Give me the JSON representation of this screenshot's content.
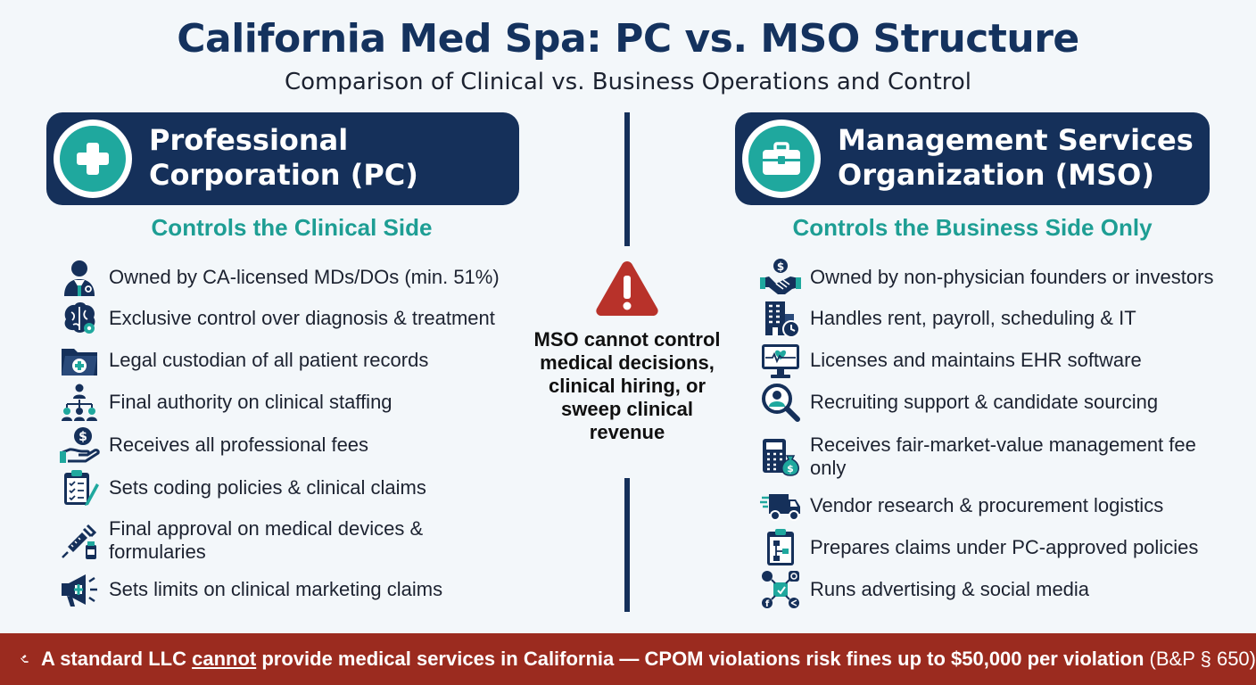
{
  "title": "California Med Spa: PC vs. MSO Structure",
  "subtitle": "Comparison of Clinical vs. Business Operations and Control",
  "pc": {
    "icon": "medical-cross-icon",
    "title_line1": "Professional",
    "title_line2": "Corporation (PC)",
    "side_label": "Controls the Clinical Side",
    "items": [
      {
        "icon": "doctor-icon",
        "label": "Owned by CA-licensed MDs/DOs (min. 51%)"
      },
      {
        "icon": "brain-gear-icon",
        "label": "Exclusive control over diagnosis & treatment"
      },
      {
        "icon": "medical-folder-icon",
        "label": "Legal custodian of all patient records"
      },
      {
        "icon": "org-chart-icon",
        "label": "Final authority on clinical staffing"
      },
      {
        "icon": "hand-coin-icon",
        "label": "Receives all professional fees"
      },
      {
        "icon": "clipboard-check-icon",
        "label": "Sets coding policies & clinical claims"
      },
      {
        "icon": "syringe-vial-icon",
        "label": "Final approval on medical devices & formularies"
      },
      {
        "icon": "megaphone-cross-icon",
        "label": "Sets limits on clinical marketing claims"
      }
    ]
  },
  "mso": {
    "icon": "briefcase-icon",
    "title_line1": "Management Services",
    "title_line2": "Organization (MSO)",
    "side_label": "Controls the Business Side Only",
    "items": [
      {
        "icon": "handshake-coin-icon",
        "label": "Owned by non-physician founders or investors"
      },
      {
        "icon": "building-clock-icon",
        "label": "Handles rent, payroll, scheduling & IT"
      },
      {
        "icon": "monitor-heartbeat-icon",
        "label": "Licenses and maintains EHR software"
      },
      {
        "icon": "magnifier-person-icon",
        "label": "Recruiting support & candidate sourcing"
      },
      {
        "icon": "calculator-moneybag-icon",
        "label": "Receives fair-market-value management fee only"
      },
      {
        "icon": "delivery-truck-icon",
        "label": "Vendor research & procurement logistics"
      },
      {
        "icon": "clipboard-flowchart-icon",
        "label": "Prepares claims under PC-approved policies"
      },
      {
        "icon": "social-media-icon",
        "label": "Runs advertising & social media"
      }
    ]
  },
  "center": {
    "icon": "warning-triangle-icon",
    "note": "MSO cannot control medical decisions, clinical hiring, or sweep clinical revenue"
  },
  "footer": {
    "icon": "gavel-icon",
    "text_before": "A standard LLC ",
    "text_emphasis": "cannot",
    "text_after": " provide medical services in California — CPOM violations risk fines up to $50,000 per violation",
    "citation": " (B&P § 650)"
  },
  "colors": {
    "navy": "#15305a",
    "title_navy": "#14325e",
    "teal": "#1e9e94",
    "warning_red": "#b8322a",
    "footer_red": "#9b2b1f"
  }
}
